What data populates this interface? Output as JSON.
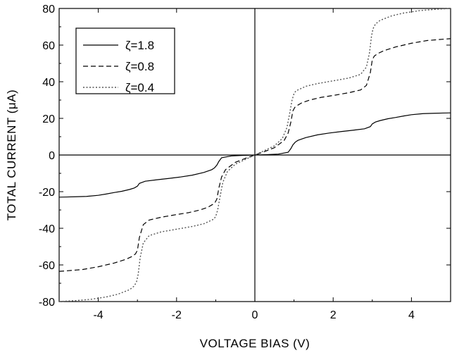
{
  "chart_data": {
    "type": "line",
    "xlabel": "VOLTAGE  BIAS (V)",
    "ylabel": "TOTAL  CURRENT  (μA)",
    "xlim": [
      -5,
      5
    ],
    "ylim": [
      -80,
      80
    ],
    "x_ticks": [
      -4,
      -2,
      0,
      2,
      4
    ],
    "y_ticks": [
      -80,
      -60,
      -40,
      -20,
      0,
      20,
      40,
      60,
      80
    ],
    "x_tick_labels": [
      "-4",
      "-2",
      "0",
      "2",
      "4"
    ],
    "y_tick_labels": [
      "-80",
      "-60",
      "-40",
      "-20",
      "0",
      "20",
      "40",
      "60",
      "80"
    ],
    "grid": false,
    "zero_lines": true,
    "legend_position": "top-left",
    "series": [
      {
        "name": "ζ=1.8",
        "line_style": "solid",
        "color": "#000000",
        "x": [
          0,
          0.3,
          0.6,
          0.85,
          0.92,
          0.97,
          1.03,
          1.1,
          1.3,
          1.6,
          1.9,
          2.2,
          2.5,
          2.8,
          2.95,
          3.0,
          3.08,
          3.2,
          3.4,
          3.6,
          3.8,
          4.0,
          4.3,
          4.6,
          4.8,
          5.0
        ],
        "y": [
          0,
          0.2,
          0.5,
          1.5,
          3.5,
          5.5,
          7.0,
          8.0,
          9.5,
          11.0,
          12.0,
          12.8,
          13.5,
          14.3,
          15.5,
          17.0,
          18.0,
          18.8,
          19.8,
          20.5,
          21.3,
          22.0,
          22.6,
          22.8,
          22.9,
          23.0
        ]
      },
      {
        "name": "ζ=0.8",
        "line_style": "dashed",
        "color": "#000000",
        "x": [
          0,
          0.2,
          0.5,
          0.75,
          0.85,
          0.92,
          0.97,
          1.02,
          1.08,
          1.2,
          1.4,
          1.7,
          2.0,
          2.4,
          2.7,
          2.85,
          2.95,
          3.0,
          3.05,
          3.15,
          3.3,
          3.6,
          4.0,
          4.4,
          4.8,
          5.0
        ],
        "y": [
          0,
          1.5,
          4.0,
          8.0,
          12.0,
          18.0,
          24.0,
          26.0,
          27.0,
          28.5,
          30.0,
          31.5,
          32.5,
          34.0,
          35.5,
          38.0,
          45.0,
          52.0,
          54.0,
          55.5,
          57.0,
          59.0,
          61.0,
          62.5,
          63.2,
          63.5
        ]
      },
      {
        "name": "ζ=0.4",
        "line_style": "dotted",
        "color": "#555555",
        "x": [
          0,
          0.2,
          0.5,
          0.7,
          0.82,
          0.9,
          0.95,
          1.0,
          1.05,
          1.15,
          1.3,
          1.6,
          2.0,
          2.4,
          2.7,
          2.85,
          2.93,
          2.98,
          3.02,
          3.08,
          3.2,
          3.5,
          3.8,
          4.2,
          4.6,
          5.0
        ],
        "y": [
          0,
          2.0,
          5.0,
          9.0,
          15.0,
          24.0,
          30.0,
          33.5,
          35.0,
          36.0,
          37.5,
          39.0,
          40.5,
          42.0,
          44.0,
          48.0,
          56.0,
          65.0,
          69.0,
          71.5,
          73.5,
          76.0,
          77.5,
          78.8,
          79.5,
          80.0
        ]
      }
    ]
  }
}
